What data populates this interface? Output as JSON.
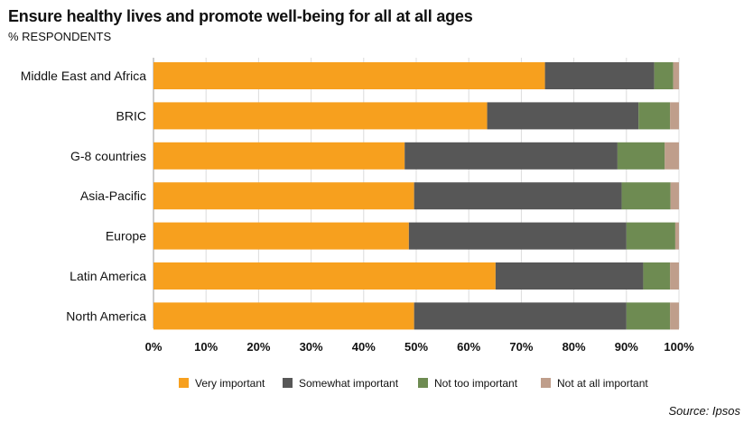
{
  "chart_data": {
    "type": "bar",
    "orientation": "horizontal",
    "stacked": true,
    "title": "Ensure healthy lives and promote well-being for all at all ages",
    "subtitle": "% RESPONDENTS",
    "source": "Source: Ipsos",
    "categories": [
      "Middle East and Africa",
      "BRIC",
      "G-8 countries",
      "Asia-Pacific",
      "Europe",
      "Latin America",
      "North America"
    ],
    "series": [
      {
        "name": "Very important",
        "color": "#f7a01e",
        "values": [
          74.5,
          63.5,
          47.8,
          49.6,
          48.6,
          65.1,
          49.6
        ]
      },
      {
        "name": "Somewhat important",
        "color": "#575757",
        "values": [
          20.8,
          28.8,
          40.5,
          39.5,
          41.4,
          28.1,
          40.4
        ]
      },
      {
        "name": "Not too important",
        "color": "#6e8b52",
        "values": [
          3.6,
          6.0,
          9.0,
          9.3,
          9.3,
          5.1,
          8.3
        ]
      },
      {
        "name": "Not at all important",
        "color": "#bf9e8b",
        "values": [
          1.1,
          1.7,
          2.7,
          1.6,
          0.7,
          1.7,
          1.7
        ]
      }
    ],
    "xlim": [
      0,
      100
    ],
    "xticks": [
      "0%",
      "10%",
      "20%",
      "30%",
      "40%",
      "50%",
      "60%",
      "70%",
      "80%",
      "90%",
      "100%"
    ],
    "grid": true,
    "legend_position": "bottom"
  }
}
